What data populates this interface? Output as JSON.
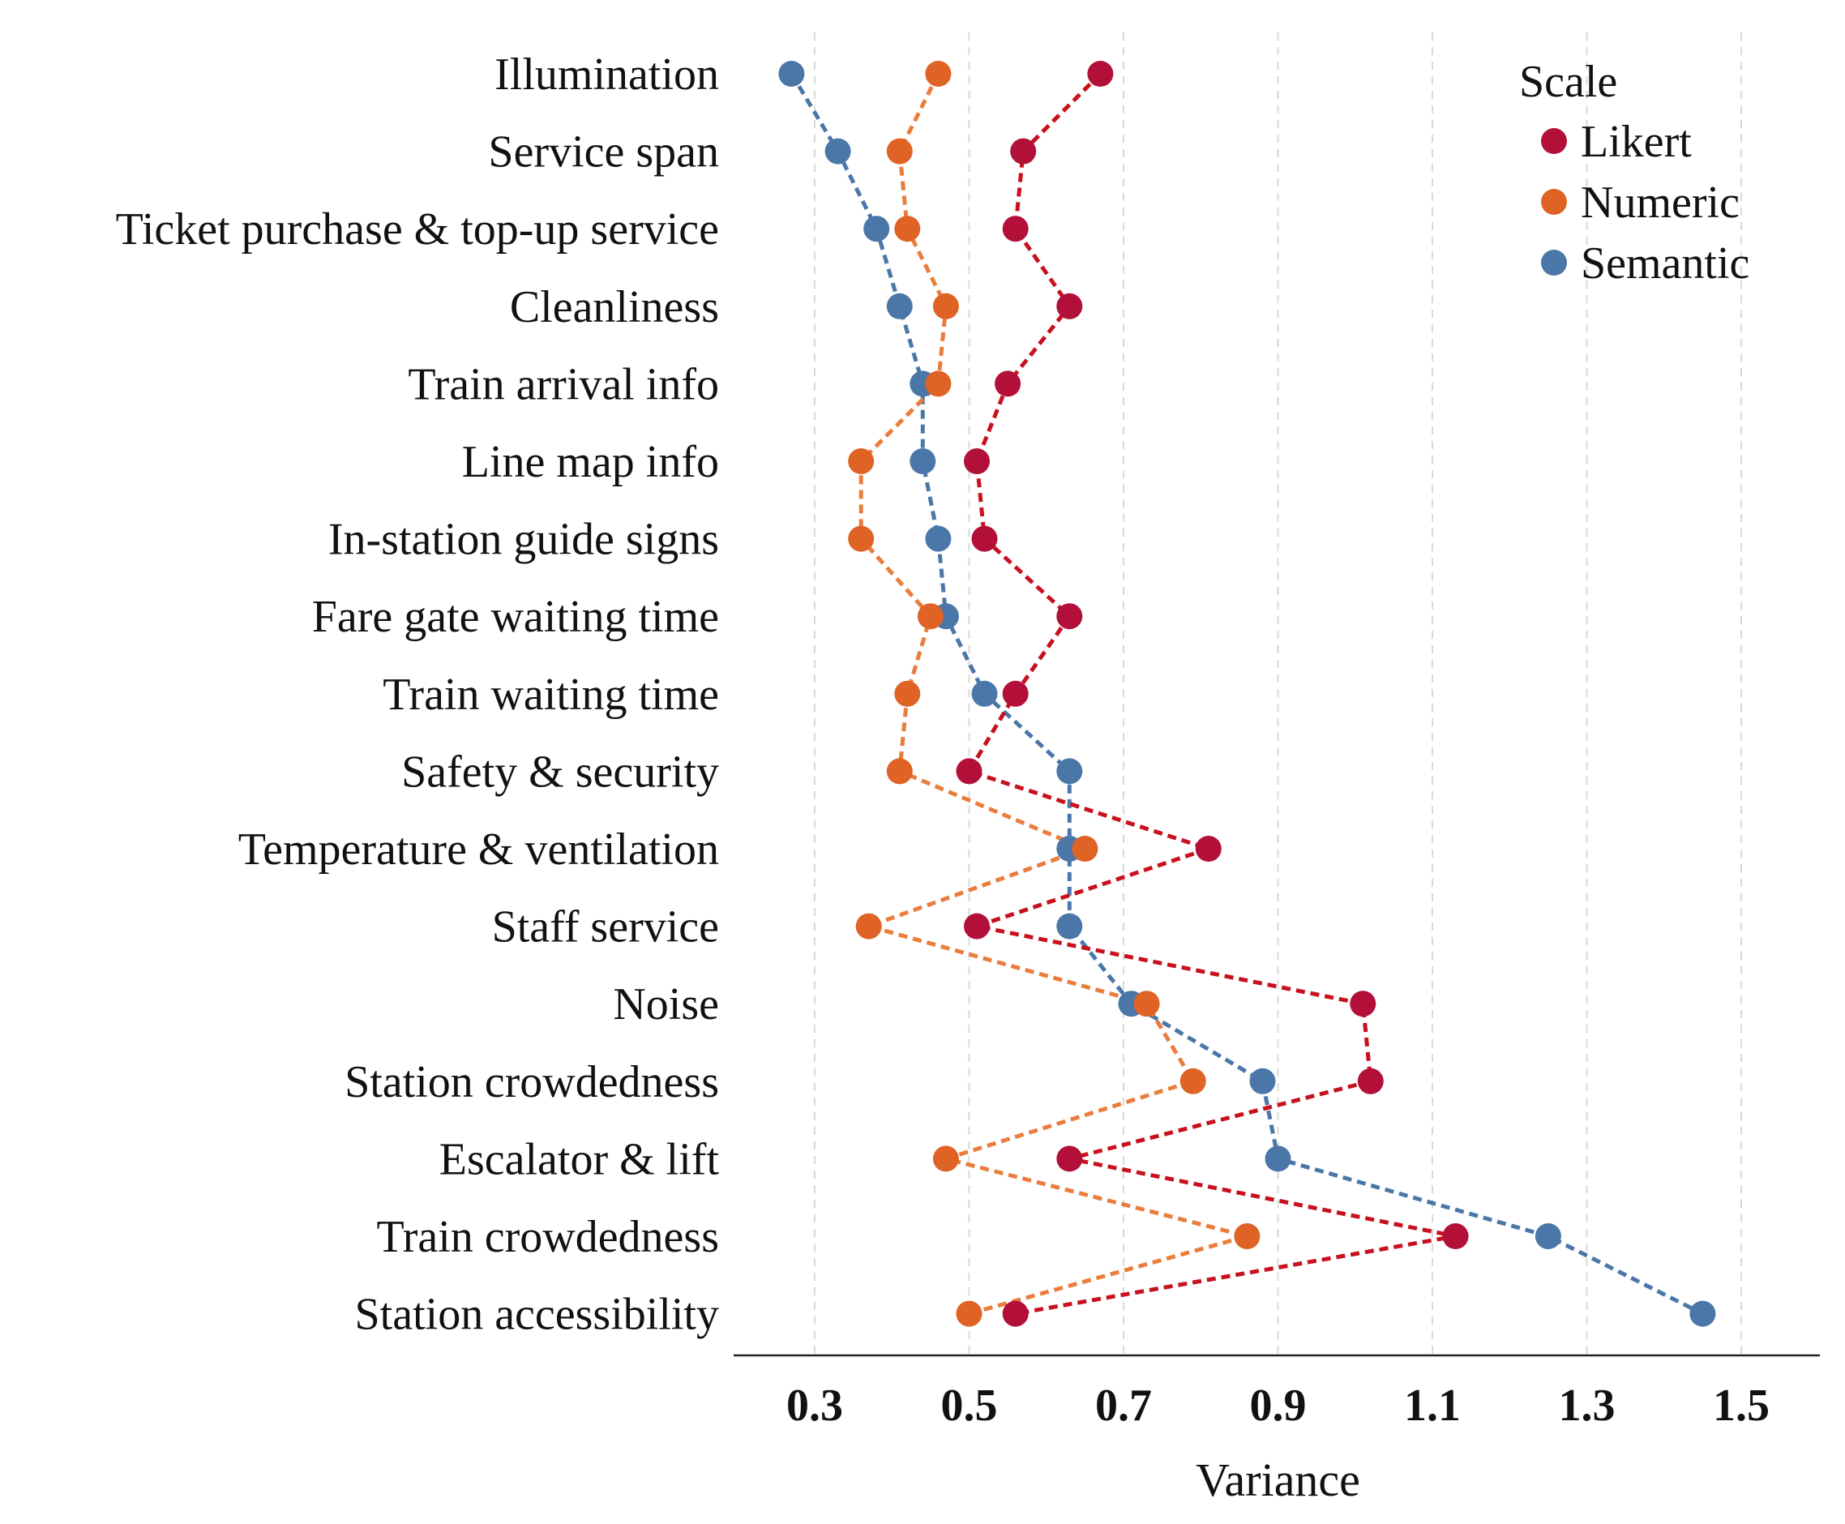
{
  "chart_data": {
    "type": "scatter",
    "title": "",
    "xlabel": "Variance",
    "ylabel": "",
    "xlim": [
      0.2,
      1.6
    ],
    "xticks": [
      0.3,
      0.5,
      0.7,
      0.9,
      1.1,
      1.3,
      1.5
    ],
    "xtick_labels": [
      "0.3",
      "0.5",
      "0.7",
      "0.9",
      "1.1",
      "1.3",
      "1.5"
    ],
    "grid": "vertical dashed",
    "legend_position": "top-right",
    "legend_title": "Scale",
    "categories": [
      "Illumination",
      "Service span",
      "Ticket purchase & top-up service",
      "Cleanliness",
      "Train arrival info",
      "Line map info",
      "In-station guide signs",
      "Fare gate waiting time",
      "Train waiting time",
      "Safety & security",
      "Temperature & ventilation",
      "Staff service",
      "Noise",
      "Station crowdedness",
      "Escalator & lift",
      "Train crowdedness",
      "Station accessibility"
    ],
    "series": [
      {
        "name": "Semantic",
        "color": "#4a77a8",
        "line_color": "#4a77a8",
        "values": [
          0.27,
          0.33,
          0.38,
          0.41,
          0.44,
          0.44,
          0.46,
          0.47,
          0.52,
          0.63,
          0.63,
          0.63,
          0.71,
          0.88,
          0.9,
          1.25,
          1.45
        ]
      },
      {
        "name": "Numeric",
        "color": "#de6324",
        "line_color": "#ea7d3c",
        "values": [
          0.46,
          0.41,
          0.42,
          0.47,
          0.46,
          0.36,
          0.36,
          0.45,
          0.42,
          0.41,
          0.65,
          0.37,
          0.73,
          0.79,
          0.47,
          0.86,
          0.5
        ]
      },
      {
        "name": "Likert",
        "color": "#b21039",
        "line_color": "#c8101e",
        "values": [
          0.67,
          0.57,
          0.56,
          0.63,
          0.55,
          0.51,
          0.52,
          0.63,
          0.56,
          0.5,
          0.81,
          0.51,
          1.01,
          1.02,
          0.63,
          1.13,
          0.56
        ]
      }
    ],
    "legend_order": [
      "Likert",
      "Numeric",
      "Semantic"
    ]
  }
}
